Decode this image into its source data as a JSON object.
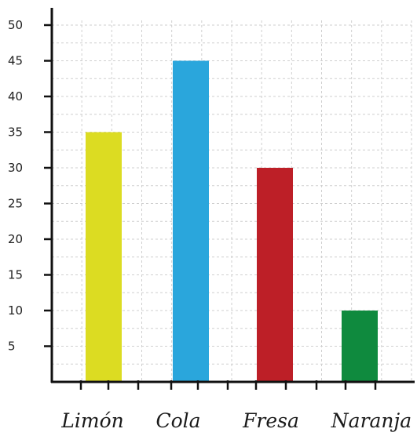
{
  "chart_data": {
    "type": "bar",
    "categories": [
      "Limón",
      "Cola",
      "Fresa",
      "Naranja"
    ],
    "values": [
      35,
      45,
      30,
      10
    ],
    "colors": [
      "#dcdc22",
      "#2aa6dc",
      "#bd1f27",
      "#0f8a3e"
    ],
    "ylim": [
      0,
      50
    ],
    "yticks": [
      5,
      10,
      15,
      20,
      25,
      30,
      35,
      40,
      45,
      50
    ],
    "grid": true,
    "legend": "none",
    "title": "",
    "xlabel": "",
    "ylabel": ""
  }
}
